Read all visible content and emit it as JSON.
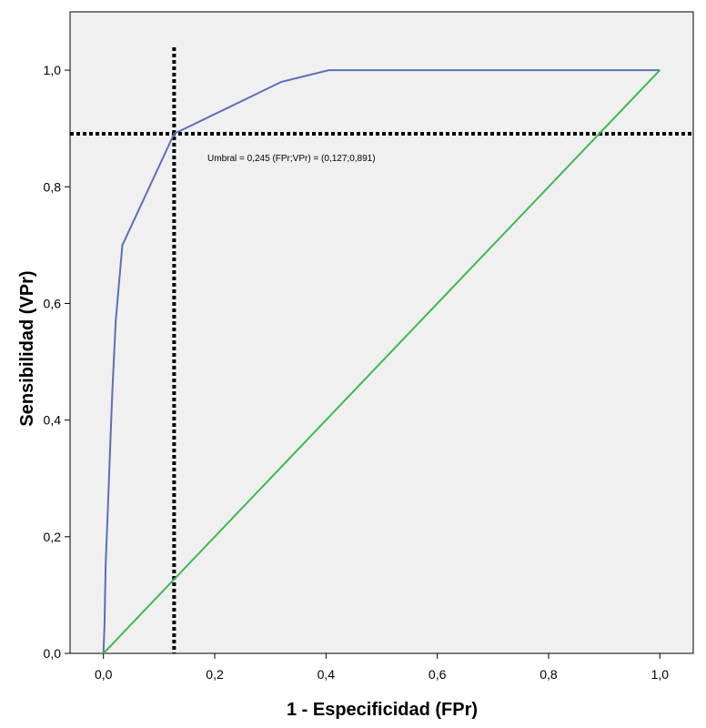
{
  "chart_data": {
    "type": "line",
    "title": "",
    "xlabel": "1 - Especificidad (FPr)",
    "ylabel": "Sensibilidad (VPr)",
    "xlim": [
      -0.06,
      1.06
    ],
    "ylim": [
      0,
      1.1
    ],
    "x_ticks": [
      0.0,
      0.2,
      0.4,
      0.6,
      0.8,
      1.0
    ],
    "x_tick_labels": [
      "0,0",
      "0,2",
      "0,4",
      "0,6",
      "0,8",
      "1,0"
    ],
    "y_ticks": [
      0.0,
      0.2,
      0.4,
      0.6,
      0.8,
      1.0
    ],
    "y_tick_labels": [
      "0,0",
      "0,2",
      "0,4",
      "0,6",
      "0,8",
      "1,0"
    ],
    "grid": false,
    "legend": "none",
    "series": [
      {
        "color": "#5b6fb8",
        "x": [
          0.0,
          0.002,
          0.004,
          0.008,
          0.012,
          0.016,
          0.022,
          0.034,
          0.127,
          0.32,
          0.405,
          1.0
        ],
        "y": [
          0.0,
          0.05,
          0.15,
          0.25,
          0.35,
          0.45,
          0.57,
          0.7,
          0.891,
          0.98,
          1.0,
          1.0
        ]
      },
      {
        "color": "#3cba50",
        "x": [
          0.0,
          1.0
        ],
        "y": [
          0.0,
          1.0
        ]
      }
    ],
    "reference_lines": {
      "color": "#000000",
      "x": 0.127,
      "y": 0.891
    },
    "annotation": {
      "text": "Umbral = 0,245  (FPr;VPr) = (0,127;0,891)",
      "x": 0.2,
      "y": 0.85
    },
    "colors": {
      "background": "#f0f0f0",
      "curve": "#5b6fb8",
      "diagonal": "#3cba50",
      "reference": "#000000"
    }
  }
}
